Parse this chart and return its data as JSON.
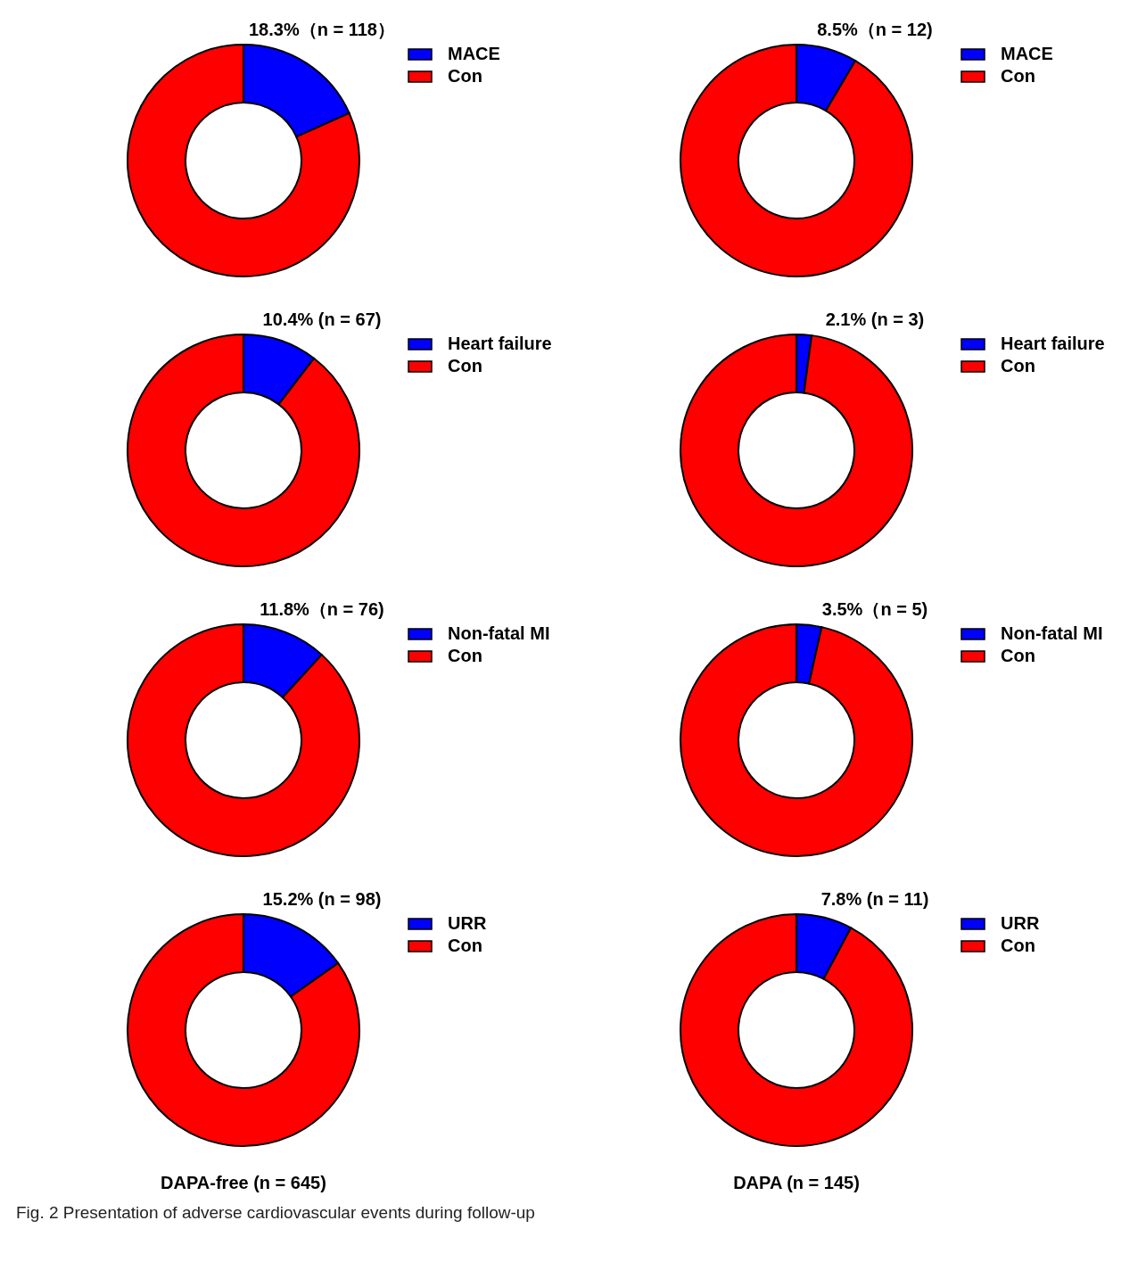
{
  "chart_data": [
    {
      "type": "donut",
      "title": "18.3%（n = 118）",
      "categories": [
        "MACE",
        "Con"
      ],
      "values": [
        18.3,
        81.7
      ],
      "colors": [
        "#0000ff",
        "#ff0000"
      ],
      "legend": "top right"
    },
    {
      "type": "donut",
      "title": "8.5%（n = 12)",
      "categories": [
        "MACE",
        "Con"
      ],
      "values": [
        8.5,
        91.5
      ],
      "colors": [
        "#0000ff",
        "#ff0000"
      ],
      "legend": "top right"
    },
    {
      "type": "donut",
      "title": "10.4% (n = 67)",
      "categories": [
        "Heart failure",
        "Con"
      ],
      "values": [
        10.4,
        89.6
      ],
      "colors": [
        "#0000ff",
        "#ff0000"
      ],
      "legend": "top right"
    },
    {
      "type": "donut",
      "title": "2.1% (n = 3)",
      "categories": [
        "Heart failure",
        "Con"
      ],
      "values": [
        2.1,
        97.9
      ],
      "colors": [
        "#0000ff",
        "#ff0000"
      ],
      "legend": "top right"
    },
    {
      "type": "donut",
      "title": "11.8%（n = 76)",
      "categories": [
        "Non-fatal MI",
        "Con"
      ],
      "values": [
        11.8,
        88.2
      ],
      "colors": [
        "#0000ff",
        "#ff0000"
      ],
      "legend": "top right"
    },
    {
      "type": "donut",
      "title": "3.5%（n = 5)",
      "categories": [
        "Non-fatal MI",
        "Con"
      ],
      "values": [
        3.5,
        96.5
      ],
      "colors": [
        "#0000ff",
        "#ff0000"
      ],
      "legend": "top right"
    },
    {
      "type": "donut",
      "title": "15.2% (n = 98)",
      "categories": [
        "URR",
        "Con"
      ],
      "values": [
        15.2,
        84.8
      ],
      "colors": [
        "#0000ff",
        "#ff0000"
      ],
      "legend": "top right",
      "xlabel": "DAPA-free (n = 645)",
      "annotations": [
        "Fig. 2  Presentation of adverse cardiovascular events during follow-up"
      ]
    },
    {
      "type": "donut",
      "title": "7.8% (n = 11)",
      "categories": [
        "URR",
        "Con"
      ],
      "values": [
        7.8,
        92.2
      ],
      "colors": [
        "#0000ff",
        "#ff0000"
      ],
      "legend": "top right",
      "xlabel": "DAPA (n = 145)"
    }
  ]
}
